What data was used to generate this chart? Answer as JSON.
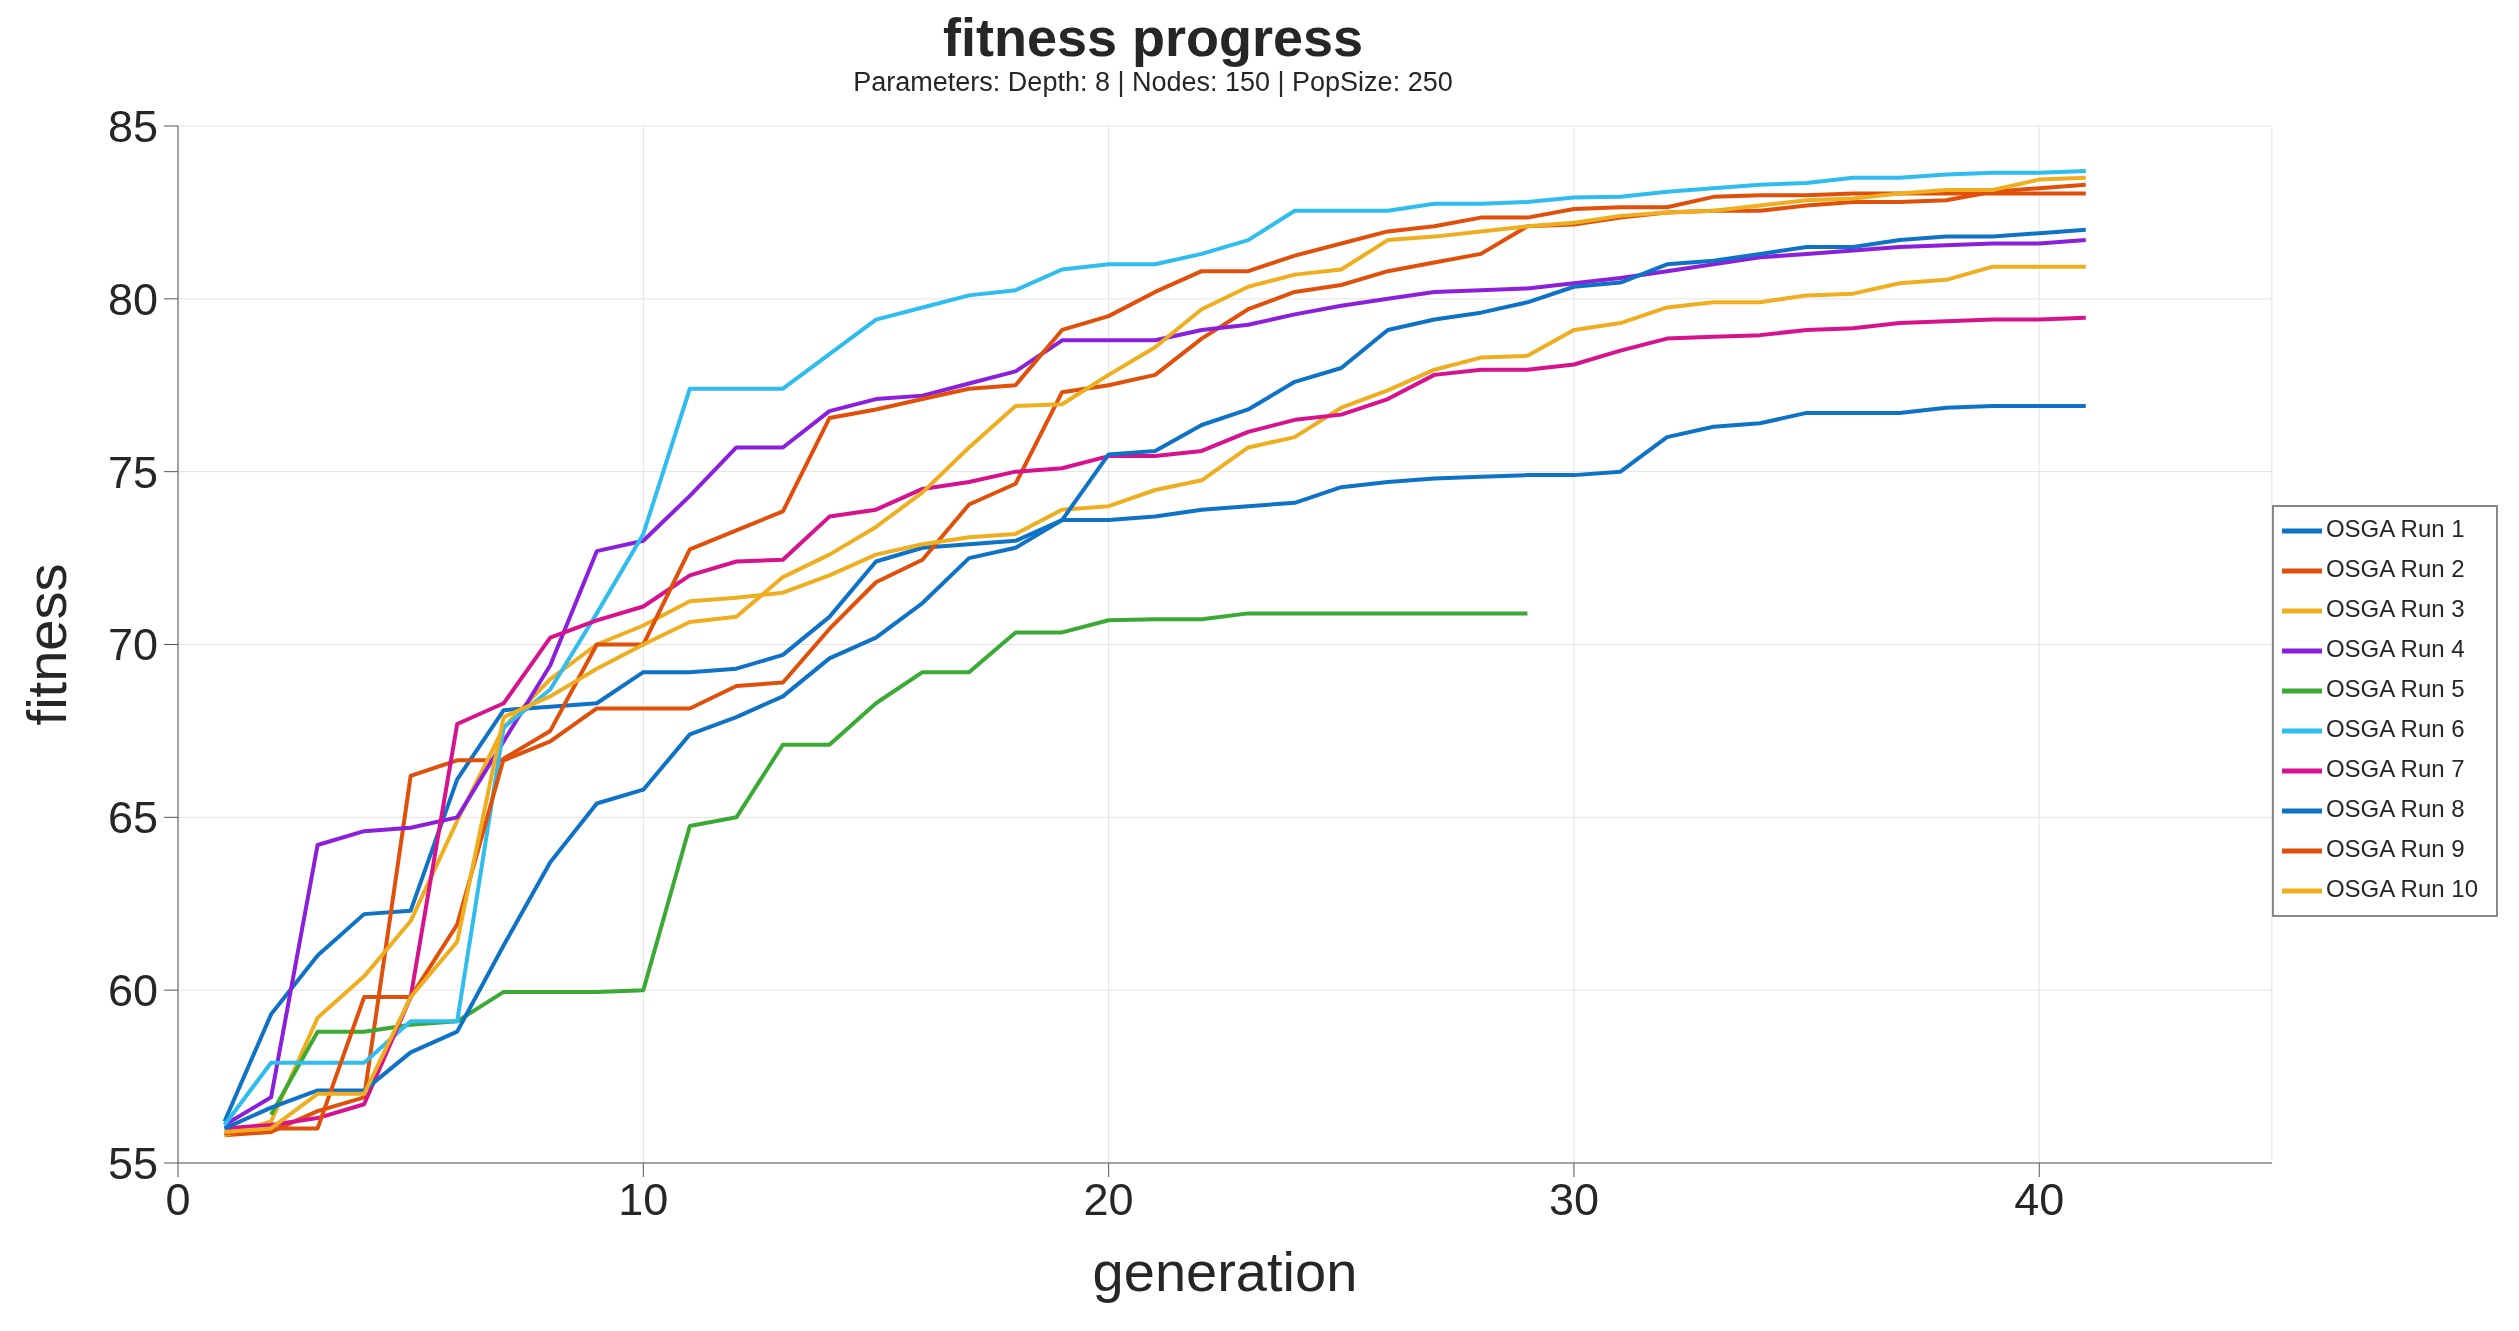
{
  "chart_data": {
    "type": "line",
    "title": "fitness progress",
    "subtitle": "Parameters: Depth: 8 | Nodes: 150 | PopSize: 250",
    "xlabel": "generation",
    "ylabel": "fitness",
    "x": [
      1,
      2,
      3,
      4,
      5,
      6,
      7,
      8,
      9,
      10,
      11,
      12,
      13,
      14,
      15,
      16,
      17,
      18,
      19,
      20,
      21,
      22,
      23,
      24,
      25,
      26,
      27,
      28,
      29,
      30,
      31,
      32,
      33,
      34,
      35,
      36,
      37,
      38,
      39,
      40,
      41
    ],
    "xlim": [
      0,
      45
    ],
    "xticks": [
      0,
      10,
      20,
      30,
      40
    ],
    "ylim": [
      55,
      85
    ],
    "yticks": [
      55,
      60,
      65,
      70,
      75,
      80,
      85
    ],
    "grid": true,
    "legend": "right",
    "line_style": "solid",
    "series": [
      {
        "name": "OSGA Run 1",
        "color": "#0e72c6",
        "values": [
          56.2,
          59.3,
          61.0,
          62.2,
          62.3,
          66.1,
          68.1,
          68.2,
          68.3,
          69.2,
          69.2,
          69.3,
          69.7,
          70.8,
          72.4,
          72.8,
          72.9,
          73.0,
          73.6,
          73.6,
          73.7,
          73.9,
          74.0,
          74.1,
          74.55,
          74.7,
          74.8,
          74.85,
          74.9,
          74.9,
          75.0,
          76.0,
          76.3,
          76.4,
          76.7,
          76.7,
          76.7,
          76.85,
          76.9,
          76.9,
          76.9
        ]
      },
      {
        "name": "OSGA Run 2",
        "color": "#e0500a",
        "values": [
          55.8,
          55.9,
          56.5,
          56.9,
          66.2,
          66.65,
          66.65,
          67.2,
          68.15,
          68.15,
          68.15,
          68.8,
          68.9,
          70.45,
          71.8,
          72.45,
          74.05,
          74.65,
          77.3,
          77.5,
          77.8,
          78.85,
          79.7,
          80.2,
          80.4,
          80.8,
          81.05,
          81.3,
          82.1,
          82.15,
          82.35,
          82.5,
          82.55,
          82.55,
          82.7,
          82.8,
          82.8,
          82.85,
          83.1,
          83.2,
          83.3
        ]
      },
      {
        "name": "OSGA Run 3",
        "color": "#efae20",
        "values": [
          55.8,
          56.2,
          59.2,
          60.4,
          62.0,
          64.9,
          67.6,
          69.0,
          70.0,
          70.55,
          71.25,
          71.35,
          71.5,
          72.0,
          72.6,
          72.9,
          73.1,
          73.2,
          73.9,
          74.0,
          74.47,
          74.75,
          75.7,
          76.0,
          76.85,
          77.35,
          77.95,
          78.3,
          78.35,
          79.1,
          79.3,
          79.75,
          79.9,
          79.9,
          80.1,
          80.15,
          80.45,
          80.55,
          80.93,
          80.93,
          80.93
        ]
      },
      {
        "name": "OSGA Run 4",
        "color": "#8b1fdb",
        "values": [
          56.1,
          56.9,
          64.2,
          64.6,
          64.7,
          65.0,
          67.2,
          69.4,
          72.7,
          73.0,
          74.3,
          75.7,
          75.7,
          76.75,
          77.1,
          77.2,
          77.55,
          77.9,
          78.8,
          78.8,
          78.8,
          79.1,
          79.25,
          79.55,
          79.8,
          80.0,
          80.2,
          80.25,
          80.3,
          80.45,
          80.6,
          80.8,
          81.0,
          81.2,
          81.3,
          81.4,
          81.5,
          81.55,
          81.6,
          81.6,
          81.7
        ]
      },
      {
        "name": "OSGA Run 5",
        "color": "#3aaa35",
        "values": [
          null,
          56.4,
          58.8,
          58.8,
          59.0,
          59.1,
          59.95,
          59.95,
          59.95,
          60.0,
          64.75,
          65.0,
          67.1,
          67.1,
          68.3,
          69.2,
          69.2,
          70.35,
          70.35,
          70.7,
          70.73,
          70.73,
          70.9,
          70.9,
          70.9,
          70.9,
          70.9,
          70.9,
          70.9,
          null,
          null,
          null,
          null,
          null,
          null,
          null,
          null,
          null,
          null,
          null,
          null
        ]
      },
      {
        "name": "OSGA Run 6",
        "color": "#2ebdee",
        "values": [
          56.1,
          57.9,
          57.9,
          57.9,
          59.1,
          59.1,
          67.6,
          68.7,
          70.9,
          73.2,
          77.4,
          77.4,
          77.4,
          78.4,
          79.4,
          79.75,
          80.1,
          80.25,
          80.85,
          81.0,
          81.0,
          81.3,
          81.7,
          82.55,
          82.55,
          82.55,
          82.75,
          82.75,
          82.8,
          82.93,
          82.95,
          83.1,
          83.2,
          83.3,
          83.35,
          83.5,
          83.5,
          83.6,
          83.65,
          83.65,
          83.7
        ]
      },
      {
        "name": "OSGA Run 7",
        "color": "#d6128f",
        "values": [
          56.0,
          56.1,
          56.3,
          56.7,
          59.8,
          67.7,
          68.3,
          70.2,
          70.7,
          71.1,
          72.0,
          72.4,
          72.45,
          73.7,
          73.9,
          74.5,
          74.7,
          75.0,
          75.1,
          75.45,
          75.45,
          75.6,
          76.15,
          76.5,
          76.65,
          77.1,
          77.8,
          77.95,
          77.95,
          78.1,
          78.5,
          78.85,
          78.9,
          78.95,
          79.1,
          79.15,
          79.3,
          79.35,
          79.4,
          79.4,
          79.45
        ]
      },
      {
        "name": "OSGA Run 8",
        "color": "#0e72c6",
        "values": [
          56.0,
          56.6,
          57.1,
          57.1,
          58.2,
          58.8,
          61.3,
          63.7,
          65.4,
          65.8,
          67.4,
          67.9,
          68.5,
          69.6,
          70.2,
          71.2,
          72.5,
          72.8,
          73.6,
          75.5,
          75.6,
          76.35,
          76.8,
          77.6,
          78.0,
          79.1,
          79.4,
          79.6,
          79.9,
          80.35,
          80.47,
          81.0,
          81.1,
          81.3,
          81.5,
          81.5,
          81.7,
          81.8,
          81.8,
          81.9,
          82.0
        ]
      },
      {
        "name": "OSGA Run 9",
        "color": "#e0500a",
        "values": [
          55.85,
          56.0,
          56.0,
          59.8,
          59.8,
          61.9,
          66.7,
          67.5,
          70.0,
          70.0,
          72.75,
          73.3,
          73.85,
          76.55,
          76.8,
          77.1,
          77.4,
          77.5,
          79.1,
          79.5,
          80.2,
          80.8,
          80.8,
          81.25,
          81.6,
          81.95,
          82.1,
          82.35,
          82.35,
          82.6,
          82.65,
          82.65,
          82.95,
          83.0,
          83.0,
          83.05,
          83.05,
          83.05,
          83.05,
          83.05,
          83.05
        ]
      },
      {
        "name": "OSGA Run 10",
        "color": "#efae20",
        "values": [
          55.9,
          56.0,
          57.0,
          57.0,
          59.8,
          61.4,
          67.9,
          68.5,
          69.3,
          70.0,
          70.65,
          70.8,
          71.95,
          72.6,
          73.4,
          74.4,
          75.7,
          76.9,
          76.95,
          77.8,
          78.6,
          79.7,
          80.35,
          80.7,
          80.85,
          81.7,
          81.8,
          81.95,
          82.1,
          82.2,
          82.4,
          82.5,
          82.55,
          82.7,
          82.85,
          82.9,
          83.05,
          83.15,
          83.15,
          83.45,
          83.5
        ]
      }
    ]
  }
}
